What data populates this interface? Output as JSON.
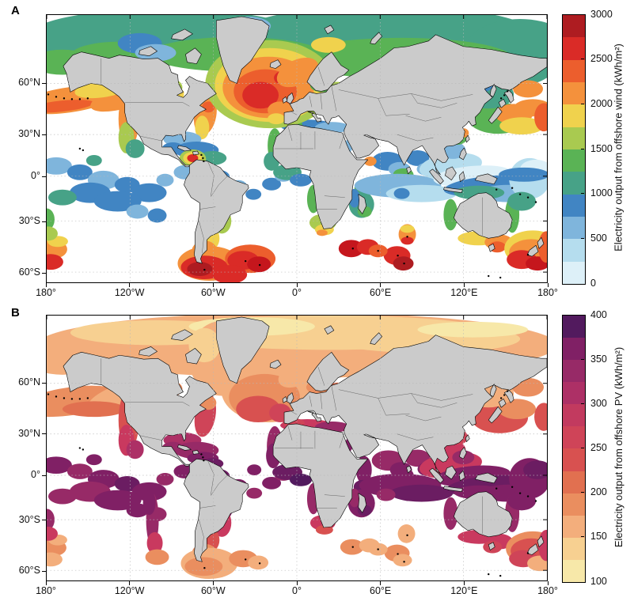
{
  "figure": {
    "panels": [
      {
        "label": "A",
        "x_ticks": [
          "180°",
          "120°W",
          "60°W",
          "0°",
          "60°E",
          "120°E",
          "180°"
        ],
        "y_ticks": [
          "60°N",
          "30°N",
          "0°",
          "30°S",
          "60°S"
        ],
        "colorbar": {
          "title": "Electricity output from offshore wind (kWh/m²)",
          "min": 0,
          "max": 3000,
          "tick_values": [
            0,
            500,
            1000,
            1500,
            2000,
            2500,
            3000
          ],
          "tick_labels": [
            "0",
            "500",
            "1000",
            "1500",
            "2000",
            "2500",
            "3000"
          ],
          "segment_size": 250,
          "colors_bottom_to_top": [
            "#ddf0f8",
            "#b5ddee",
            "#7fb5dc",
            "#4185c3",
            "#47a287",
            "#5ab355",
            "#a9ca50",
            "#f0d24d",
            "#f4913c",
            "#ec5e2d",
            "#da2b27",
            "#ae1c21"
          ]
        }
      },
      {
        "label": "B",
        "x_ticks": [
          "180°",
          "120°W",
          "60°W",
          "0°",
          "60°E",
          "120°E",
          "180°"
        ],
        "y_ticks": [
          "60°N",
          "30°N",
          "0°",
          "30°S",
          "60°S"
        ],
        "colorbar": {
          "title": "Electricity output from offshore PV (kWh/m²)",
          "min": 100,
          "max": 400,
          "tick_values": [
            100,
            150,
            200,
            250,
            300,
            350,
            400
          ],
          "tick_labels": [
            "100",
            "150",
            "200",
            "250",
            "300",
            "350",
            "400"
          ],
          "segment_size": 25,
          "colors_bottom_to_top": [
            "#f7e8a9",
            "#f7d091",
            "#f3ae7c",
            "#ea8e5f",
            "#e17050",
            "#d85150",
            "#cf4458",
            "#c23a5f",
            "#ad3066",
            "#972a67",
            "#802065",
            "#521a5e"
          ]
        }
      }
    ],
    "land_color": "#cbcbcb",
    "coastline_color": "#000000",
    "grid_color": "#b8b8b8"
  },
  "chart_data": [
    {
      "type": "heatmap",
      "panel": "A",
      "title": "Electricity output from offshore wind (kWh/m²)",
      "projection": "world map, 180°W–180°E, ~65°S–84°N",
      "x_axis_ticks": [
        "180°",
        "120°W",
        "60°W",
        "0°",
        "60°E",
        "120°E",
        "180°"
      ],
      "y_axis_ticks": [
        "60°N",
        "30°N",
        "0°",
        "30°S",
        "60°S"
      ],
      "colorbar_range": [
        0,
        3000
      ],
      "colorbar_tick_step": 500,
      "regional_values_kwh_m2": [
        {
          "region": "North Atlantic / North Sea / around UK and Iceland",
          "value": "2000-3000"
        },
        {
          "region": "Gulf of Alaska / Bering Sea / Aleutians",
          "value": "1750-2500"
        },
        {
          "region": "US east coast shelf",
          "value": "1750-2250"
        },
        {
          "region": "Arctic seas band",
          "value": "1000-1500"
        },
        {
          "region": "NW Pacific near Japan",
          "value": "1250-2250"
        },
        {
          "region": "Tropical oceans and Caribbean",
          "value": "250-1000"
        },
        {
          "region": "Caribbean hotspot off Colombia",
          "value": "2500-3000"
        },
        {
          "region": "Equatorial SE Asia / Indonesia",
          "value": "0-500"
        },
        {
          "region": "Mediterranean Sea",
          "value": "500-1250"
        },
        {
          "region": "Southern tip of South America / Drake Passage",
          "value": "2500-3000"
        },
        {
          "region": "Southern Ocean islands (Kerguelen, South Georgia)",
          "value": "2500-3000"
        },
        {
          "region": "South of Australia / Tasmania / New Zealand",
          "value": "2000-3000"
        }
      ]
    },
    {
      "type": "heatmap",
      "panel": "B",
      "title": "Electricity output from offshore PV (kWh/m²)",
      "projection": "world map, 180°W–180°E, ~65°S–84°N",
      "x_axis_ticks": [
        "180°",
        "120°W",
        "60°W",
        "0°",
        "60°E",
        "120°E",
        "180°"
      ],
      "y_axis_ticks": [
        "60°N",
        "30°N",
        "0°",
        "30°S",
        "60°S"
      ],
      "colorbar_range": [
        100,
        400
      ],
      "colorbar_tick_step": 50,
      "regional_values_kwh_m2": [
        {
          "region": "Equatorial oceans (E Pacific, Atlantic, Indian, Indonesia)",
          "value": "325-400"
        },
        {
          "region": "Tropical coasts of Africa and South America",
          "value": "300-375"
        },
        {
          "region": "Caribbean / Gulf of Mexico",
          "value": "275-350"
        },
        {
          "region": "Mediterranean / Red Sea / Arabian Gulf",
          "value": "250-325"
        },
        {
          "region": "US west and east coasts",
          "value": "225-275"
        },
        {
          "region": "Japan / China seas",
          "value": "225-275"
        },
        {
          "region": "North Atlantic mid-latitudes",
          "value": "175-250"
        },
        {
          "region": "Arctic seas band",
          "value": "100-175"
        },
        {
          "region": "Southern Ocean islands",
          "value": "150-225"
        },
        {
          "region": "Australia coasts",
          "value": "250-325"
        },
        {
          "region": "New Zealand",
          "value": "200-250"
        }
      ]
    }
  ]
}
